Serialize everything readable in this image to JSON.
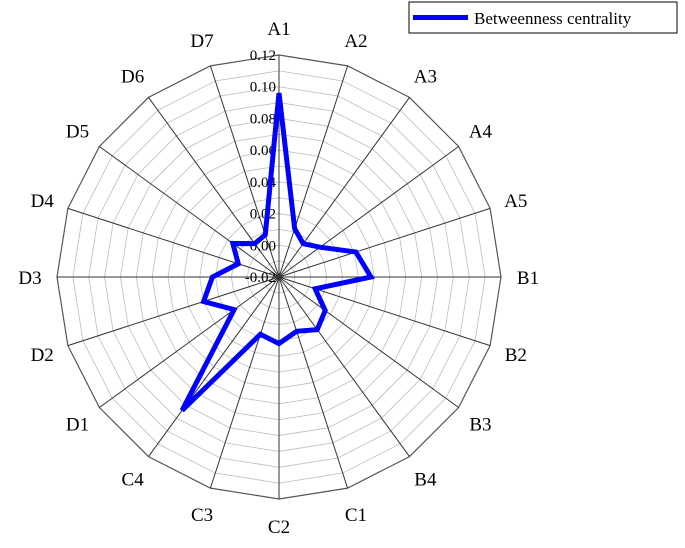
{
  "chart_data": {
    "type": "radar",
    "categories": [
      "A1",
      "A2",
      "A3",
      "A4",
      "A5",
      "B1",
      "B2",
      "B3",
      "B4",
      "C1",
      "C2",
      "C3",
      "C4",
      "D1",
      "D2",
      "D3",
      "D4",
      "D5",
      "D6",
      "D7"
    ],
    "series": [
      {
        "name": "Betweenness centrality",
        "color": "#0000ff",
        "values": [
          0.096,
          0.012,
          0.006,
          0.012,
          0.031,
          0.038,
          0.004,
          0.016,
          0.021,
          0.016,
          0.022,
          0.018,
          0.084,
          0.015,
          0.03,
          0.022,
          0.007,
          0.016,
          0.006,
          0.008
        ]
      }
    ],
    "radial_axis": {
      "min": -0.02,
      "max": 0.12,
      "ticks": [
        "0.12",
        "0.10",
        "0.08",
        "0.06",
        "0.04",
        "0.02",
        "0.00",
        "-0.02"
      ],
      "tick_values": [
        0.12,
        0.1,
        0.08,
        0.06,
        0.04,
        0.02,
        0.0,
        -0.02
      ]
    },
    "grid": true,
    "legend": {
      "position": "top-right",
      "entries": [
        "Betweenness centrality"
      ]
    }
  }
}
